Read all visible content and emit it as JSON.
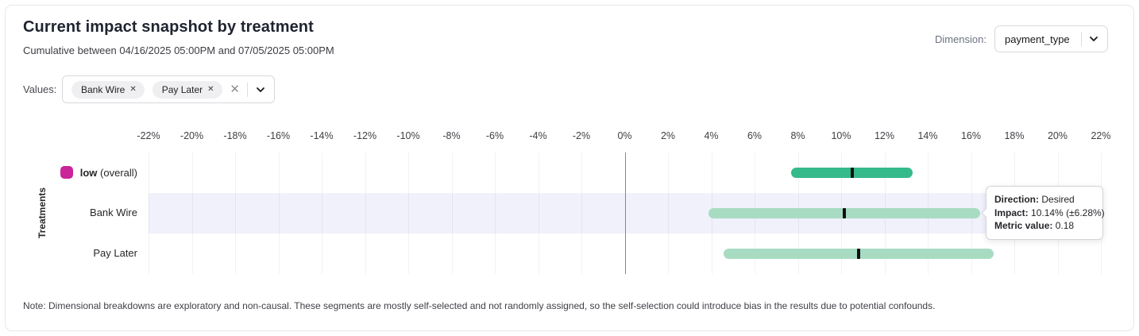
{
  "header": {
    "title": "Current impact snapshot by treatment",
    "subtitle": "Cumulative between 04/16/2025 05:00PM and 07/05/2025 05:00PM"
  },
  "dimension": {
    "label": "Dimension:",
    "value": "payment_type"
  },
  "values_filter": {
    "label": "Values:",
    "chips": [
      {
        "label": "Bank Wire"
      },
      {
        "label": "Pay Later"
      }
    ],
    "remove_icon": "✕",
    "clear_icon": "✕"
  },
  "tooltip": {
    "lines": [
      {
        "label": "Direction:",
        "value": "Desired"
      },
      {
        "label": "Impact:",
        "value": "10.14% (±6.28%)"
      },
      {
        "label": "Metric value:",
        "value": "0.18"
      }
    ]
  },
  "chart_data": {
    "type": "bar",
    "orientation": "horizontal_interval",
    "ylabel": "Treatments",
    "xlim": [
      -22,
      22
    ],
    "x_tick_step": 2,
    "x_ticks": [
      -22,
      -20,
      -18,
      -16,
      -14,
      -12,
      -10,
      -8,
      -6,
      -4,
      -2,
      0,
      2,
      4,
      6,
      8,
      10,
      12,
      14,
      16,
      18,
      20,
      22
    ],
    "x_tick_unit": "%",
    "grid": true,
    "zero_line": true,
    "rows": [
      {
        "label": "low",
        "label_note": "(overall)",
        "label_bold": true,
        "legend_color": "#cb2398",
        "bar_color": "#35ba8b",
        "impact_pct": 10.5,
        "error_pct": 2.8,
        "low_pct": 7.7,
        "high_pct": 13.3,
        "highlighted": false
      },
      {
        "label": "Bank Wire",
        "label_note": "",
        "label_bold": false,
        "legend_color": null,
        "bar_color": "#a8dcc2",
        "impact_pct": 10.14,
        "error_pct": 6.28,
        "low_pct": 3.86,
        "high_pct": 16.42,
        "highlighted": true
      },
      {
        "label": "Pay Later",
        "label_note": "",
        "label_bold": false,
        "legend_color": null,
        "bar_color": "#a8dcc2",
        "impact_pct": 10.81,
        "error_pct": 6.24,
        "low_pct": 4.57,
        "high_pct": 17.05,
        "highlighted": false
      }
    ]
  },
  "note": "Note: Dimensional breakdowns are exploratory and non-causal. These segments are mostly self-selected and not randomly assigned, so the self-selection could introduce bias in the results due to potential confounds.",
  "colors": {
    "bar_overall": "#35ba8b",
    "bar_segment": "#a8dcc2",
    "legend_swatch": "#cb2398",
    "row_highlight": "#f0f1fb",
    "marker": "#101014",
    "zero_line": "#85878c"
  }
}
